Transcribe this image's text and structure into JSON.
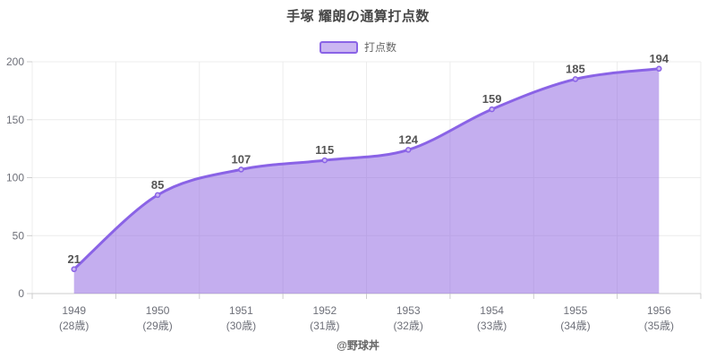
{
  "title": "手塚 耀朗の通算打点数",
  "legend": {
    "label": "打点数"
  },
  "footer": "@野球丼",
  "chart_data": {
    "type": "area",
    "title": "手塚 耀朗の通算打点数",
    "legend_entries": [
      "打点数"
    ],
    "legend_position": "top",
    "smooth": true,
    "grid": true,
    "value_labels": true,
    "categories": [
      "1949",
      "1950",
      "1951",
      "1952",
      "1953",
      "1954",
      "1955",
      "1956"
    ],
    "categories_sub": [
      "(28歳)",
      "(29歳)",
      "(30歳)",
      "(31歳)",
      "(32歳)",
      "(33歳)",
      "(34歳)",
      "(35歳)"
    ],
    "series": [
      {
        "name": "打点数",
        "values": [
          21,
          85,
          107,
          115,
          124,
          159,
          185,
          194
        ]
      }
    ],
    "xlabel": "",
    "ylabel": "",
    "ylim": [
      0,
      200
    ],
    "yticks": [
      0,
      50,
      100,
      150,
      200
    ],
    "colors": {
      "line": "#8a63e6",
      "fill": "#8a5de0",
      "fill_opacity": 0.5,
      "point_fill": "#cbb6f2",
      "grid": "#ececec",
      "axis_line": "#cccccc",
      "axis_label": "#6e7079",
      "value_label": "#555555",
      "legend_text": "#666666"
    }
  }
}
